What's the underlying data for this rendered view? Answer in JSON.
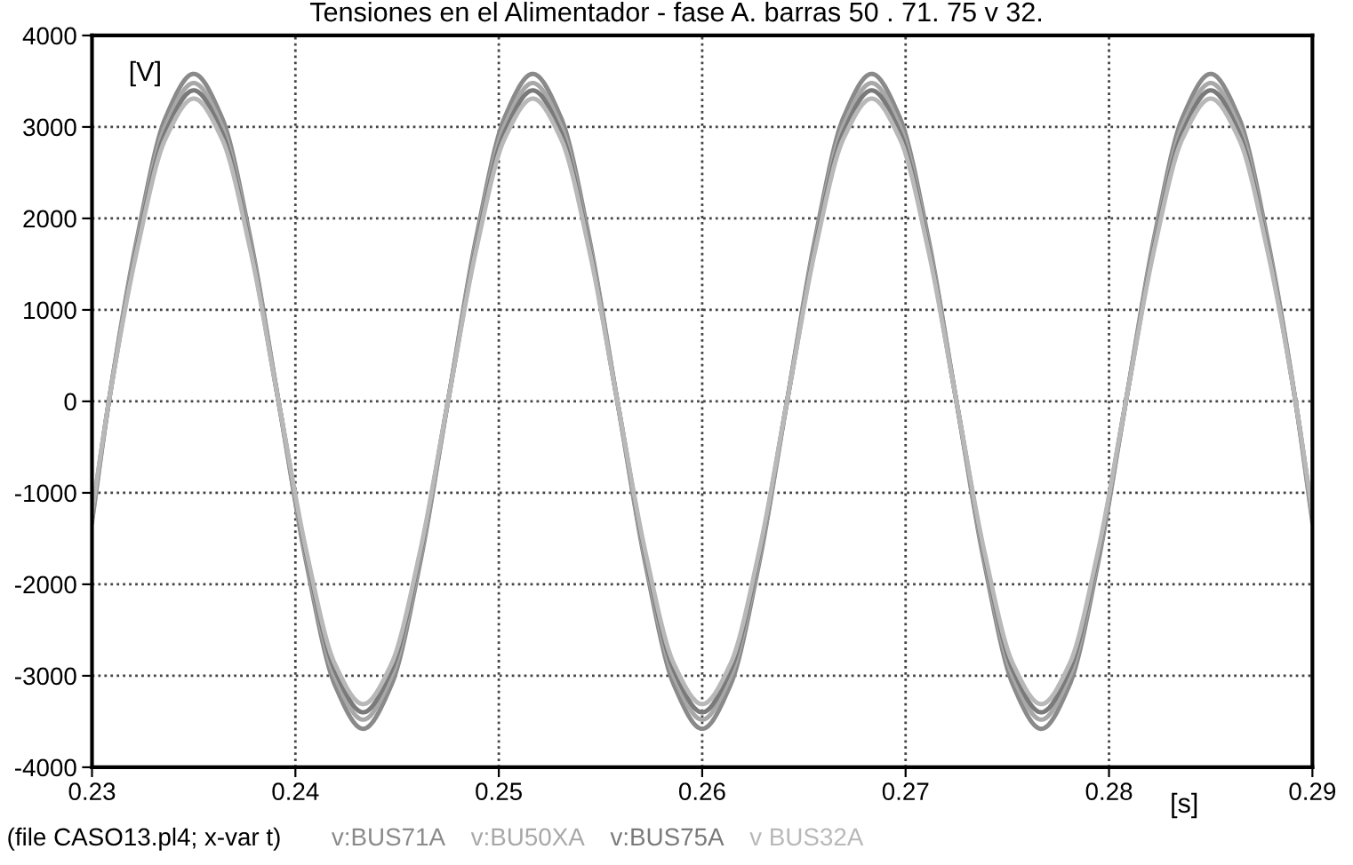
{
  "chart_data": {
    "type": "line",
    "title": "Tensiones en el Alimentador - fase A. barras 50 . 71. 75 v 32.",
    "xlabel": "[s]",
    "ylabel": "[V]",
    "x": [
      0.23,
      0.23083,
      0.23222,
      0.23361,
      0.235,
      0.23639,
      0.23778,
      0.23917,
      0.24056,
      0.24194,
      0.24333,
      0.24472,
      0.24611,
      0.2475,
      0.24889,
      0.25028,
      0.25167,
      0.25306,
      0.25444,
      0.25583,
      0.25722,
      0.25861,
      0.26,
      0.26139,
      0.26278,
      0.26417,
      0.26556,
      0.26694,
      0.26833,
      0.26972,
      0.27111,
      0.2725,
      0.27389,
      0.27528,
      0.27667,
      0.27806,
      0.27944,
      0.28083,
      0.28222,
      0.28361,
      0.285,
      0.28639,
      0.28778,
      0.28917,
      0.29
    ],
    "series": [
      {
        "name": "v:BUS71A",
        "color": "#8a8a8a",
        "values": [
          -1320,
          0,
          1790,
          3100,
          3580,
          3100,
          1790,
          0,
          -1790,
          -3100,
          -3580,
          -3100,
          -1790,
          0,
          1790,
          3100,
          3580,
          3100,
          1790,
          0,
          -1790,
          -3100,
          -3580,
          -3100,
          -1790,
          0,
          1790,
          3100,
          3580,
          3100,
          1790,
          0,
          -1790,
          -3100,
          -3580,
          -3100,
          -1790,
          0,
          1790,
          3100,
          3580,
          3100,
          1790,
          0,
          -1320
        ]
      },
      {
        "name": "v:BU50XA",
        "color": "#a8a8a8",
        "values": [
          -1280,
          0,
          1740,
          3010,
          3480,
          3010,
          1740,
          0,
          -1740,
          -3010,
          -3480,
          -3010,
          -1740,
          0,
          1740,
          3010,
          3480,
          3010,
          1740,
          0,
          -1740,
          -3010,
          -3480,
          -3010,
          -1740,
          0,
          1740,
          3010,
          3480,
          3010,
          1740,
          0,
          -1740,
          -3010,
          -3480,
          -3010,
          -1740,
          0,
          1740,
          3010,
          3480,
          3010,
          1740,
          0,
          -1280
        ]
      },
      {
        "name": "v:BUS75A",
        "color": "#7a7a7a",
        "values": [
          -1250,
          0,
          1700,
          2940,
          3400,
          2940,
          1700,
          0,
          -1700,
          -2940,
          -3400,
          -2940,
          -1700,
          0,
          1700,
          2940,
          3400,
          2940,
          1700,
          0,
          -1700,
          -2940,
          -3400,
          -2940,
          -1700,
          0,
          1700,
          2940,
          3400,
          2940,
          1700,
          0,
          -1700,
          -2940,
          -3400,
          -2940,
          -1700,
          0,
          1700,
          2940,
          3400,
          2940,
          1700,
          0,
          -1250
        ]
      },
      {
        "name": "v BUS32A",
        "color": "#b8b8b8",
        "values": [
          -1220,
          0,
          1660,
          2870,
          3310,
          2870,
          1660,
          0,
          -1660,
          -2870,
          -3310,
          -2870,
          -1660,
          0,
          1660,
          2870,
          3310,
          2870,
          1660,
          0,
          -1660,
          -2870,
          -3310,
          -2870,
          -1660,
          0,
          1660,
          2870,
          3310,
          2870,
          1660,
          0,
          -1660,
          -2870,
          -3310,
          -2870,
          -1660,
          0,
          1660,
          2870,
          3310,
          2870,
          1660,
          0,
          -1220
        ]
      }
    ],
    "xlim": [
      0.23,
      0.29
    ],
    "xticks": [
      0.23,
      0.24,
      0.25,
      0.26,
      0.27,
      0.28,
      0.29
    ],
    "ylim": [
      -4000,
      4000
    ],
    "yticks": [
      -4000,
      -3000,
      -2000,
      -1000,
      0,
      1000,
      2000,
      3000,
      4000
    ],
    "grid": true,
    "legend": "bottom",
    "line_style": "solid",
    "marker": "none",
    "annotations": [
      "(file CASO13.pl4; x-var t)"
    ]
  }
}
